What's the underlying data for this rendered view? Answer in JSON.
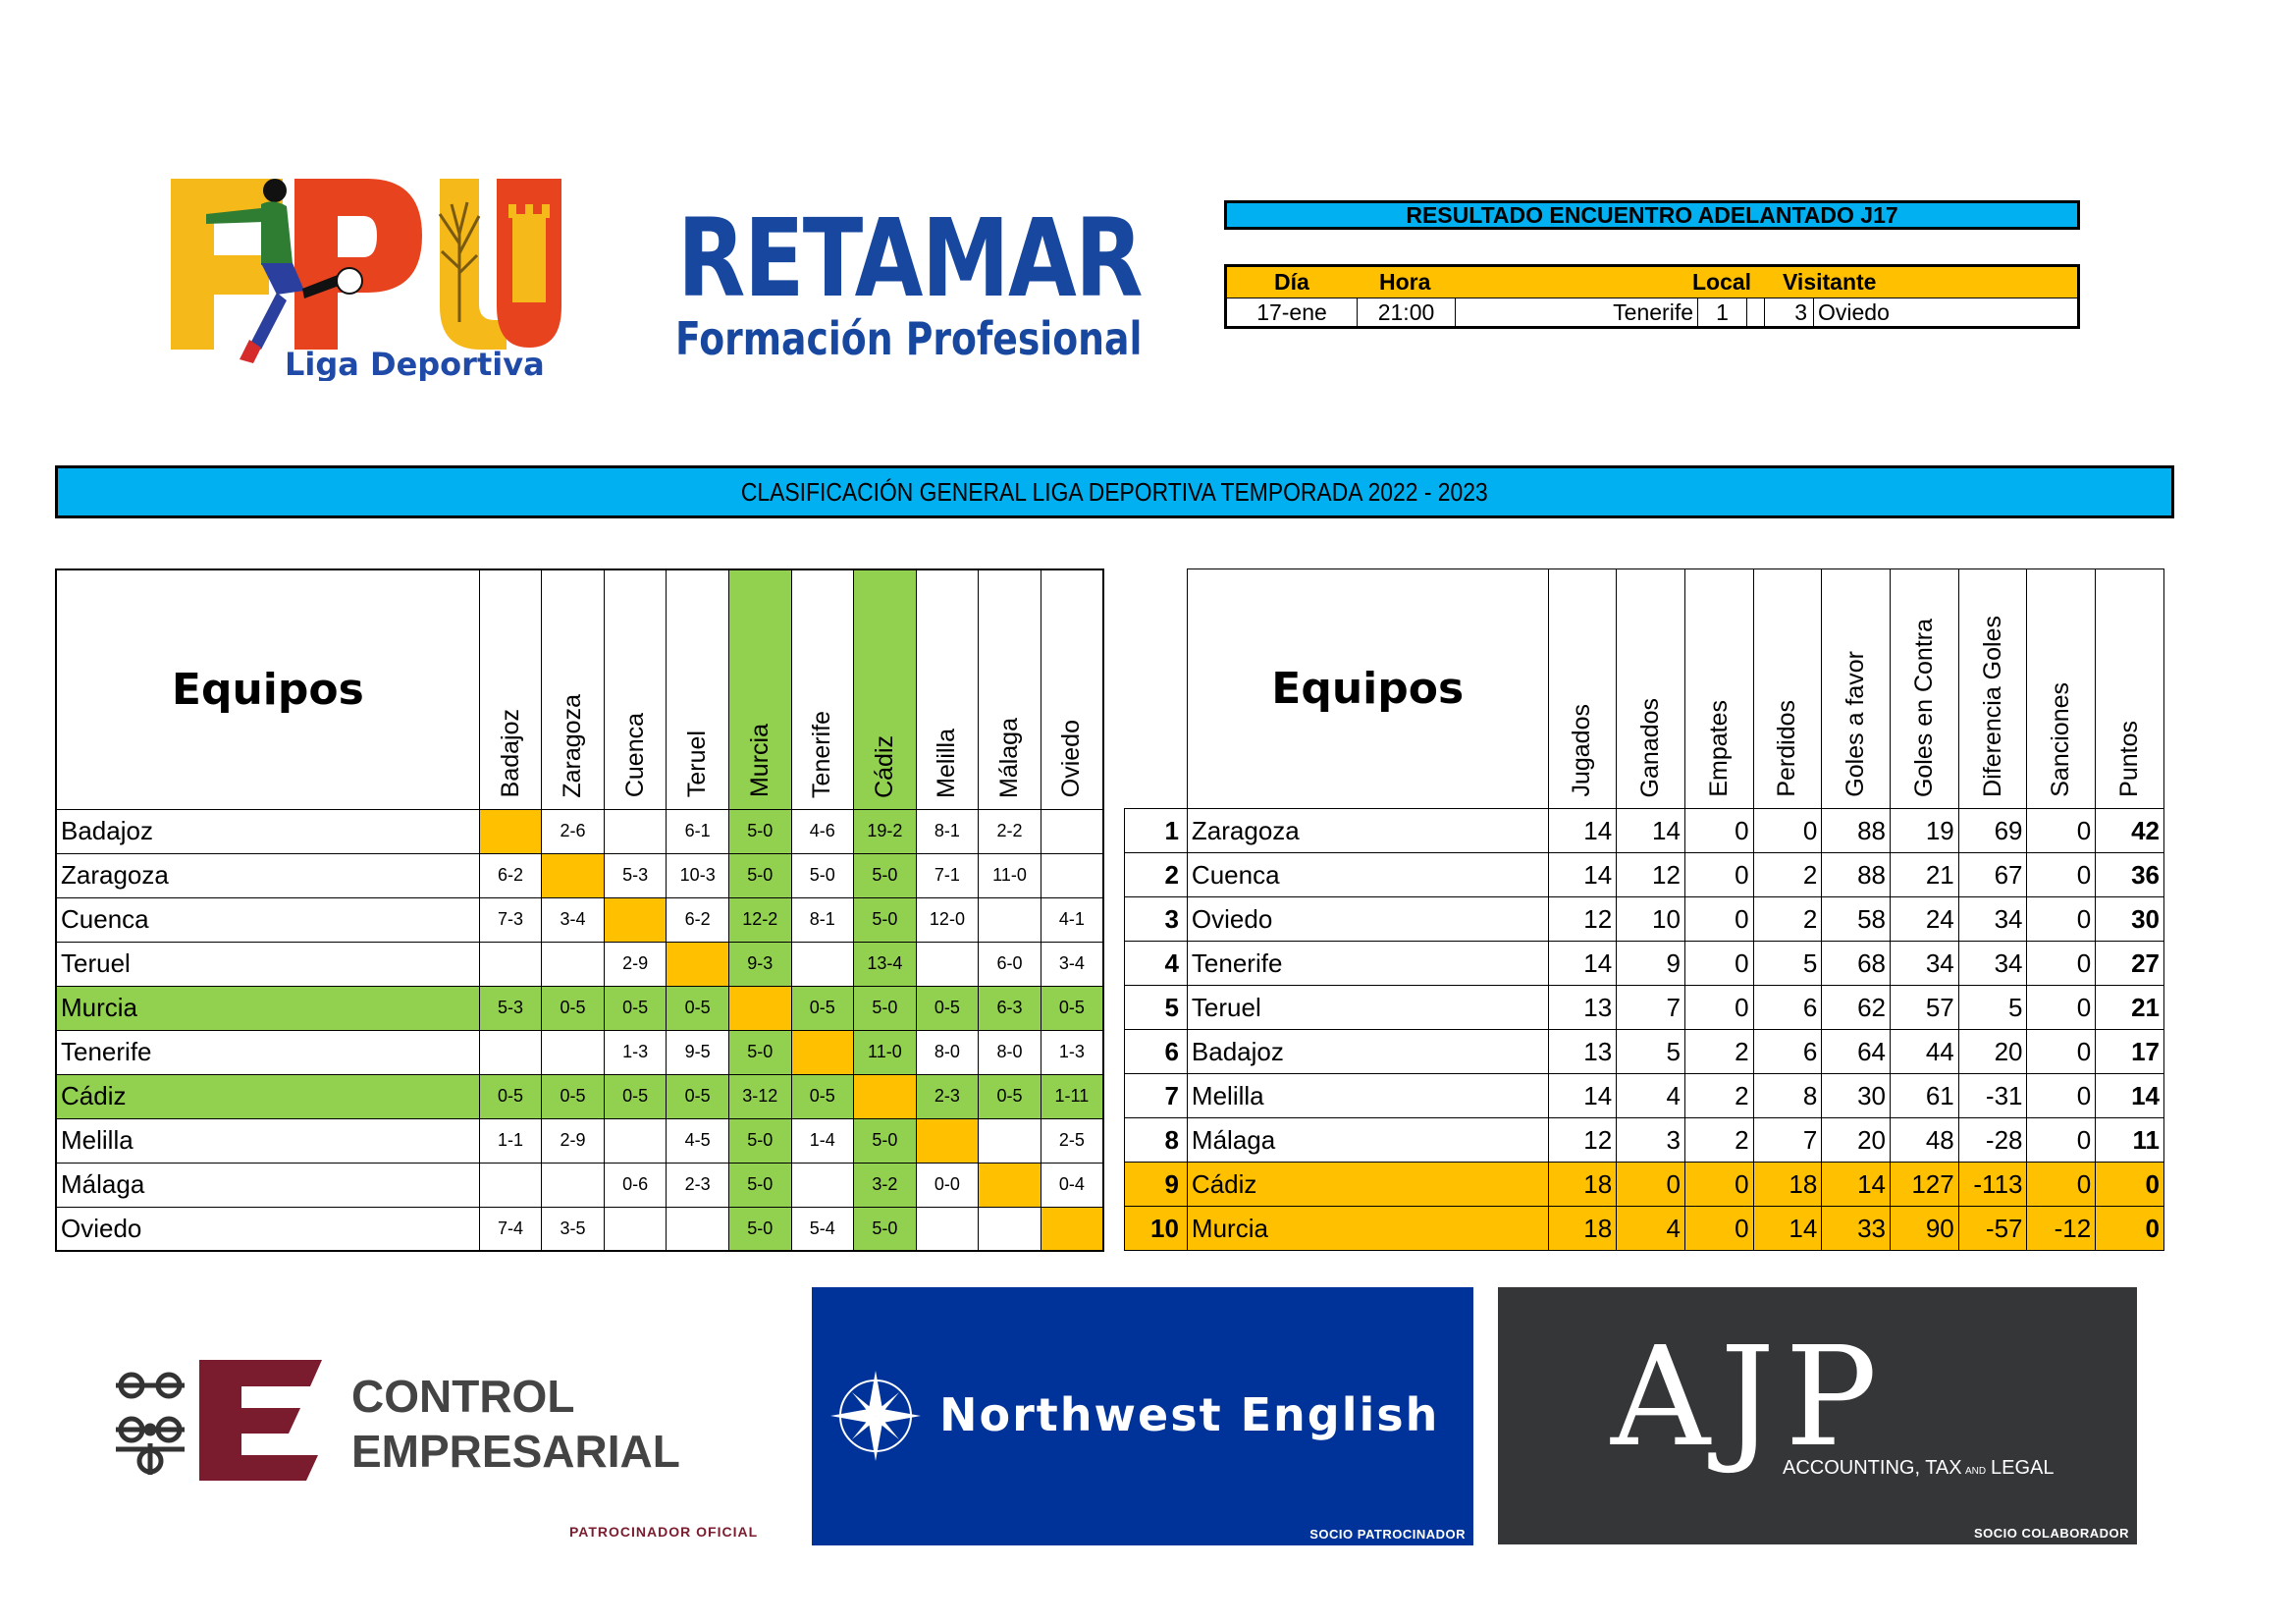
{
  "header": {
    "fpu_logo_text": "Liga Deportiva",
    "retamar_title": "RETAMAR",
    "retamar_subtitle": "Formación Profesional"
  },
  "match": {
    "title": "RESULTADO ENCUENTRO ADELANTADO J17",
    "headers": {
      "dia": "Día",
      "hora": "Hora",
      "local": "Local",
      "visitante": "Visitante"
    },
    "row": {
      "dia": "17-ene",
      "hora": "21:00",
      "local": "Tenerife",
      "goles_local": "1",
      "goles_visitante": "3",
      "visitante": "Oviedo"
    }
  },
  "classification_title": "CLASIFICACIÓN GENERAL LIGA DEPORTIVA TEMPORADA 2022 - 2023",
  "matrix": {
    "header": "Equipos",
    "columns": [
      "Badajoz",
      "Zaragoza",
      "Cuenca",
      "Teruel",
      "Murcia",
      "Tenerife",
      "Cádiz",
      "Melilla",
      "Málaga",
      "Oviedo"
    ],
    "rows": [
      {
        "team": "Badajoz",
        "cells": [
          "",
          "2-6",
          "",
          "6-1",
          "5-0",
          "4-6",
          "19-2",
          "8-1",
          "2-2",
          ""
        ]
      },
      {
        "team": "Zaragoza",
        "cells": [
          "6-2",
          "",
          "5-3",
          "10-3",
          "5-0",
          "5-0",
          "5-0",
          "7-1",
          "11-0",
          ""
        ]
      },
      {
        "team": "Cuenca",
        "cells": [
          "7-3",
          "3-4",
          "",
          "6-2",
          "12-2",
          "8-1",
          "5-0",
          "12-0",
          "",
          "4-1"
        ]
      },
      {
        "team": "Teruel",
        "cells": [
          "",
          "",
          "2-9",
          "",
          "9-3",
          "",
          "13-4",
          "",
          "6-0",
          "3-4"
        ]
      },
      {
        "team": "Murcia",
        "cells": [
          "5-3",
          "0-5",
          "0-5",
          "0-5",
          "",
          "0-5",
          "5-0",
          "0-5",
          "6-3",
          "0-5"
        ]
      },
      {
        "team": "Tenerife",
        "cells": [
          "",
          "",
          "1-3",
          "9-5",
          "5-0",
          "",
          "11-0",
          "8-0",
          "8-0",
          "1-3"
        ]
      },
      {
        "team": "Cádiz",
        "cells": [
          "0-5",
          "0-5",
          "0-5",
          "0-5",
          "3-12",
          "0-5",
          "",
          "2-3",
          "0-5",
          "1-11"
        ]
      },
      {
        "team": "Melilla",
        "cells": [
          "1-1",
          "2-9",
          "",
          "4-5",
          "5-0",
          "1-4",
          "5-0",
          "",
          "",
          "2-5"
        ]
      },
      {
        "team": "Málaga",
        "cells": [
          "",
          "",
          "0-6",
          "2-3",
          "5-0",
          "",
          "3-2",
          "0-0",
          "",
          "0-4"
        ]
      },
      {
        "team": "Oviedo",
        "cells": [
          "7-4",
          "3-5",
          "",
          "",
          "5-0",
          "5-4",
          "5-0",
          "",
          "",
          ""
        ]
      }
    ]
  },
  "standings": {
    "header": "Equipos",
    "columns": [
      "Jugados",
      "Ganados",
      "Empates",
      "Perdidos",
      "Goles a favor",
      "Goles en Contra",
      "Diferencia Goles",
      "Sanciones",
      "Puntos"
    ],
    "rows": [
      {
        "pos": "1",
        "team": "Zaragoza",
        "vals": [
          "14",
          "14",
          "0",
          "0",
          "88",
          "19",
          "69",
          "0",
          "42"
        ]
      },
      {
        "pos": "2",
        "team": "Cuenca",
        "vals": [
          "14",
          "12",
          "0",
          "2",
          "88",
          "21",
          "67",
          "0",
          "36"
        ]
      },
      {
        "pos": "3",
        "team": "Oviedo",
        "vals": [
          "12",
          "10",
          "0",
          "2",
          "58",
          "24",
          "34",
          "0",
          "30"
        ]
      },
      {
        "pos": "4",
        "team": "Tenerife",
        "vals": [
          "14",
          "9",
          "0",
          "5",
          "68",
          "34",
          "34",
          "0",
          "27"
        ]
      },
      {
        "pos": "5",
        "team": "Teruel",
        "vals": [
          "13",
          "7",
          "0",
          "6",
          "62",
          "57",
          "5",
          "0",
          "21"
        ]
      },
      {
        "pos": "6",
        "team": "Badajoz",
        "vals": [
          "13",
          "5",
          "2",
          "6",
          "64",
          "44",
          "20",
          "0",
          "17"
        ]
      },
      {
        "pos": "7",
        "team": "Melilla",
        "vals": [
          "14",
          "4",
          "2",
          "8",
          "30",
          "61",
          "-31",
          "0",
          "14"
        ]
      },
      {
        "pos": "8",
        "team": "Málaga",
        "vals": [
          "12",
          "3",
          "2",
          "7",
          "20",
          "48",
          "-28",
          "0",
          "11"
        ]
      },
      {
        "pos": "9",
        "team": "Cádiz",
        "vals": [
          "18",
          "0",
          "0",
          "18",
          "14",
          "127",
          "-113",
          "0",
          "0"
        ]
      },
      {
        "pos": "10",
        "team": "Murcia",
        "vals": [
          "18",
          "4",
          "0",
          "14",
          "33",
          "90",
          "-57",
          "-12",
          "0"
        ]
      }
    ]
  },
  "sponsors": {
    "control": {
      "line1": "CONTROL",
      "line2": "EMPRESARIAL",
      "tag": "PATROCINADOR OFICIAL"
    },
    "northwest": {
      "name": "Northwest English",
      "tag": "SOCIO PATROCINADOR"
    },
    "ajp": {
      "name": "AJP",
      "sub1": "ACCOUNTING, TAX",
      "sub_and": "AND",
      "sub2": "LEGAL",
      "tag": "SOCIO COLABORADOR"
    }
  },
  "colors": {
    "cyan": "#00b0f0",
    "orange": "#ffc000",
    "green": "#92d050",
    "retamar_blue": "#17479e",
    "control_red": "#7b1c2e",
    "nw_blue": "#003399",
    "ajp_dark": "#343638"
  }
}
